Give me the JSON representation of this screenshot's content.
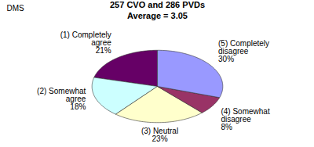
{
  "chart_data": {
    "type": "pie",
    "title": "257 CVO and 286 PVDs",
    "subtitle": "Average = 3.05",
    "annotation": "DMS",
    "categories": [
      "(1) Completely agree",
      "(2) Somewhat agree",
      "(3) Neutral",
      "(4) Somewhat disagree",
      "(5) Completely disagree"
    ],
    "values": [
      21,
      18,
      23,
      8,
      30
    ],
    "value_labels": [
      "21%",
      "18%",
      "23%",
      "8%",
      "30%"
    ],
    "colors": [
      "#660066",
      "#ccffff",
      "#ffffcc",
      "#993366",
      "#9999ff"
    ],
    "data_labels": true
  }
}
